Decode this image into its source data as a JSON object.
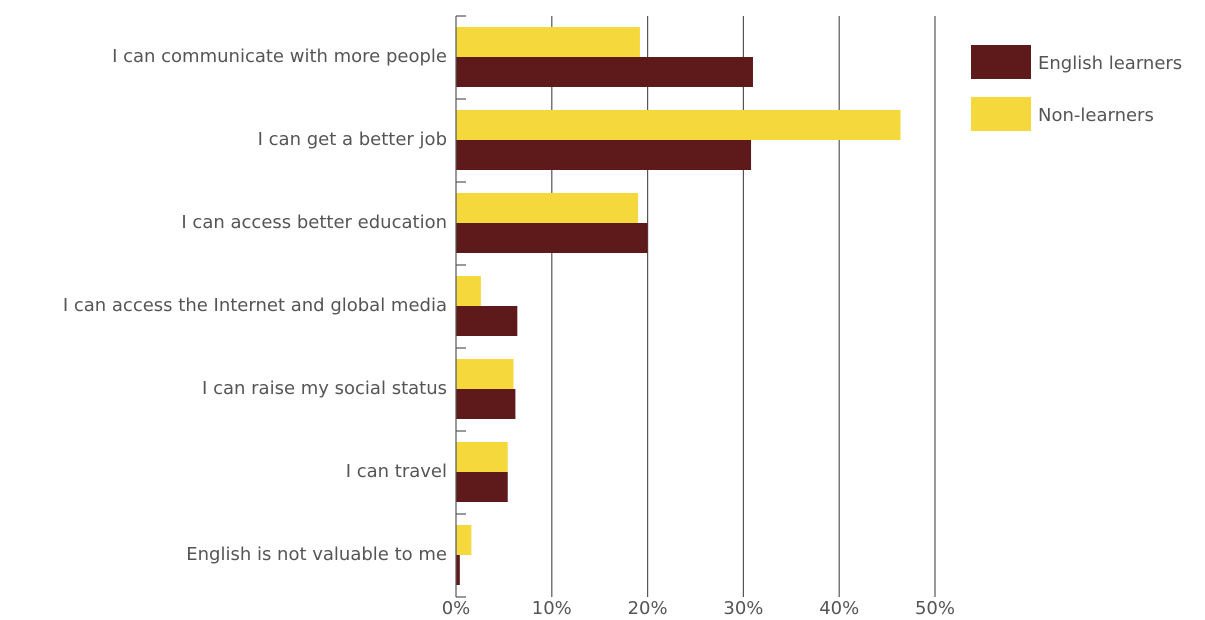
{
  "chart_data": {
    "type": "bar",
    "orientation": "horizontal",
    "categories": [
      "I can communicate with more people",
      "I can get a better job",
      "I can access better education",
      "I can access the Internet and global media",
      "I can raise my social status",
      "I can travel",
      "English is not valuable to me"
    ],
    "series": [
      {
        "name": "Non-learners",
        "values": [
          19.2,
          46.4,
          19.0,
          2.6,
          6.0,
          5.4,
          1.6
        ]
      },
      {
        "name": "English learners",
        "values": [
          31.0,
          30.8,
          20.0,
          6.4,
          6.2,
          5.4,
          0.4
        ]
      }
    ],
    "xlim": [
      0,
      50
    ],
    "xticks": [
      "0%",
      "10%",
      "20%",
      "30%",
      "40%",
      "50%"
    ],
    "grid": true,
    "legend_position": "right",
    "legend_order": [
      "English learners",
      "Non-learners"
    ],
    "colors": {
      "Non-learners": "#F5D93C",
      "English learners": "#5E1A1B",
      "grid": "#555555",
      "text": "#555555"
    }
  }
}
